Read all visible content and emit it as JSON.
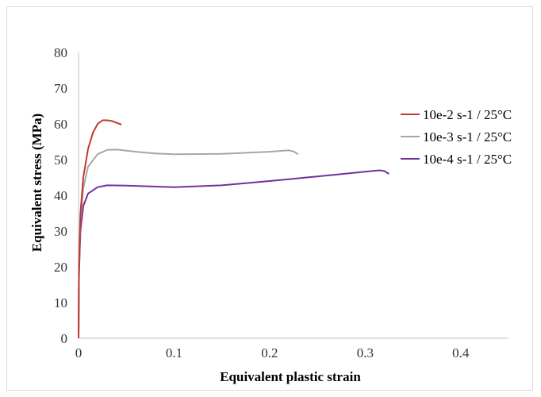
{
  "chart_data": {
    "type": "line",
    "title": "",
    "xlabel": "Equivalent plastic strain",
    "ylabel": "Equivalent stress (MPa)",
    "xlim": [
      0,
      0.45
    ],
    "ylim": [
      0,
      80
    ],
    "x_ticks": [
      0,
      0.1,
      0.2,
      0.3,
      0.4
    ],
    "x_tick_labels": [
      "0",
      "0.1",
      "0.2",
      "0.3",
      "0.4"
    ],
    "y_ticks": [
      0,
      10,
      20,
      30,
      40,
      50,
      60,
      70,
      80
    ],
    "y_tick_labels": [
      "0",
      "10",
      "20",
      "30",
      "40",
      "50",
      "60",
      "70",
      "80"
    ],
    "grid": false,
    "legend_position": "right",
    "series": [
      {
        "name": "10e-2 s-1 / 25°C",
        "color": "#c0392b",
        "points": [
          [
            0,
            0
          ],
          [
            0.0005,
            20
          ],
          [
            0.002,
            35
          ],
          [
            0.005,
            45
          ],
          [
            0.01,
            53
          ],
          [
            0.015,
            57.5
          ],
          [
            0.02,
            60
          ],
          [
            0.025,
            61
          ],
          [
            0.03,
            61
          ],
          [
            0.035,
            60.8
          ],
          [
            0.04,
            60.3
          ],
          [
            0.045,
            59.8
          ]
        ]
      },
      {
        "name": "10e-3 s-1 / 25°C",
        "color": "#a6a6a6",
        "points": [
          [
            0,
            0
          ],
          [
            0.0005,
            20
          ],
          [
            0.002,
            33
          ],
          [
            0.005,
            42
          ],
          [
            0.01,
            48
          ],
          [
            0.02,
            51.5
          ],
          [
            0.03,
            52.7
          ],
          [
            0.04,
            52.8
          ],
          [
            0.06,
            52.2
          ],
          [
            0.08,
            51.7
          ],
          [
            0.1,
            51.5
          ],
          [
            0.15,
            51.6
          ],
          [
            0.2,
            52.2
          ],
          [
            0.22,
            52.6
          ],
          [
            0.225,
            52.3
          ],
          [
            0.23,
            51.5
          ]
        ]
      },
      {
        "name": "10e-4 s-1 / 25°C",
        "color": "#7030a0",
        "points": [
          [
            0,
            0
          ],
          [
            0.0005,
            18
          ],
          [
            0.002,
            30
          ],
          [
            0.005,
            37
          ],
          [
            0.01,
            40.5
          ],
          [
            0.02,
            42.3
          ],
          [
            0.03,
            42.8
          ],
          [
            0.05,
            42.7
          ],
          [
            0.1,
            42.3
          ],
          [
            0.15,
            42.8
          ],
          [
            0.2,
            44
          ],
          [
            0.25,
            45.3
          ],
          [
            0.3,
            46.6
          ],
          [
            0.315,
            47
          ],
          [
            0.32,
            46.8
          ],
          [
            0.325,
            46
          ]
        ]
      }
    ]
  }
}
